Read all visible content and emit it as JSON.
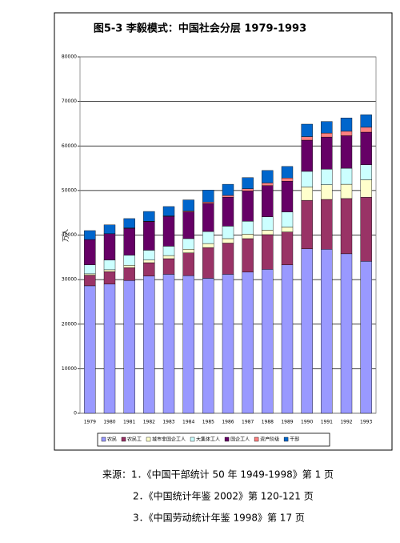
{
  "chart_data": {
    "type": "stacked_bar",
    "title": "图5-3 李毅模式：中国社会分层 1979-1993",
    "y_label": "万人",
    "categories": [
      "1979",
      "1980",
      "1981",
      "1982",
      "1983",
      "1984",
      "1985",
      "1986",
      "1987",
      "1988",
      "1989",
      "1990",
      "1991",
      "1992",
      "1993"
    ],
    "series": [
      {
        "name": "农民",
        "color": "#9999ff",
        "values": [
          28600,
          29000,
          29800,
          30800,
          31200,
          30900,
          30300,
          31200,
          31700,
          32300,
          33300,
          36900,
          36800,
          35800,
          34100
        ]
      },
      {
        "name": "农民工",
        "color": "#993366",
        "values": [
          2400,
          2800,
          2900,
          3000,
          3500,
          5100,
          6900,
          7000,
          7500,
          7800,
          7400,
          10900,
          11200,
          12400,
          14400
        ]
      },
      {
        "name": "城市非国企工人",
        "color": "#ffffcc",
        "values": [
          300,
          400,
          500,
          600,
          700,
          800,
          900,
          1000,
          1000,
          1000,
          1100,
          3000,
          3300,
          3200,
          3900
        ]
      },
      {
        "name": "大集体工人",
        "color": "#ccffff",
        "values": [
          2000,
          2200,
          2300,
          2200,
          2100,
          2400,
          2700,
          2800,
          2900,
          3000,
          3400,
          3500,
          3500,
          3600,
          3400
        ]
      },
      {
        "name": "国企工人",
        "color": "#660066",
        "values": [
          5700,
          5900,
          6000,
          6400,
          6700,
          6000,
          6300,
          6500,
          6800,
          7000,
          6900,
          7000,
          7200,
          7300,
          7300
        ]
      },
      {
        "name": "资产阶级",
        "color": "#ff8080",
        "values": [
          0,
          0,
          100,
          100,
          100,
          200,
          300,
          400,
          500,
          600,
          700,
          800,
          900,
          1000,
          1100
        ]
      },
      {
        "name": "干部",
        "color": "#0066cc",
        "values": [
          2000,
          2000,
          2100,
          2200,
          2100,
          2500,
          2700,
          2500,
          2500,
          2800,
          2600,
          2800,
          2600,
          3000,
          2800
        ]
      }
    ],
    "ylim": [
      0,
      80000
    ],
    "yticks": [
      0,
      10000,
      20000,
      30000,
      40000,
      50000,
      60000,
      70000,
      80000
    ],
    "grid": true
  },
  "sources": [
    "来源：1．《中国干部统计 50 年 1949-1998》第 1 页",
    "2．《中国统计年鉴 2002》第 120-121 页",
    "3．《中国劳动统计年鉴 1998》第 17 页"
  ]
}
